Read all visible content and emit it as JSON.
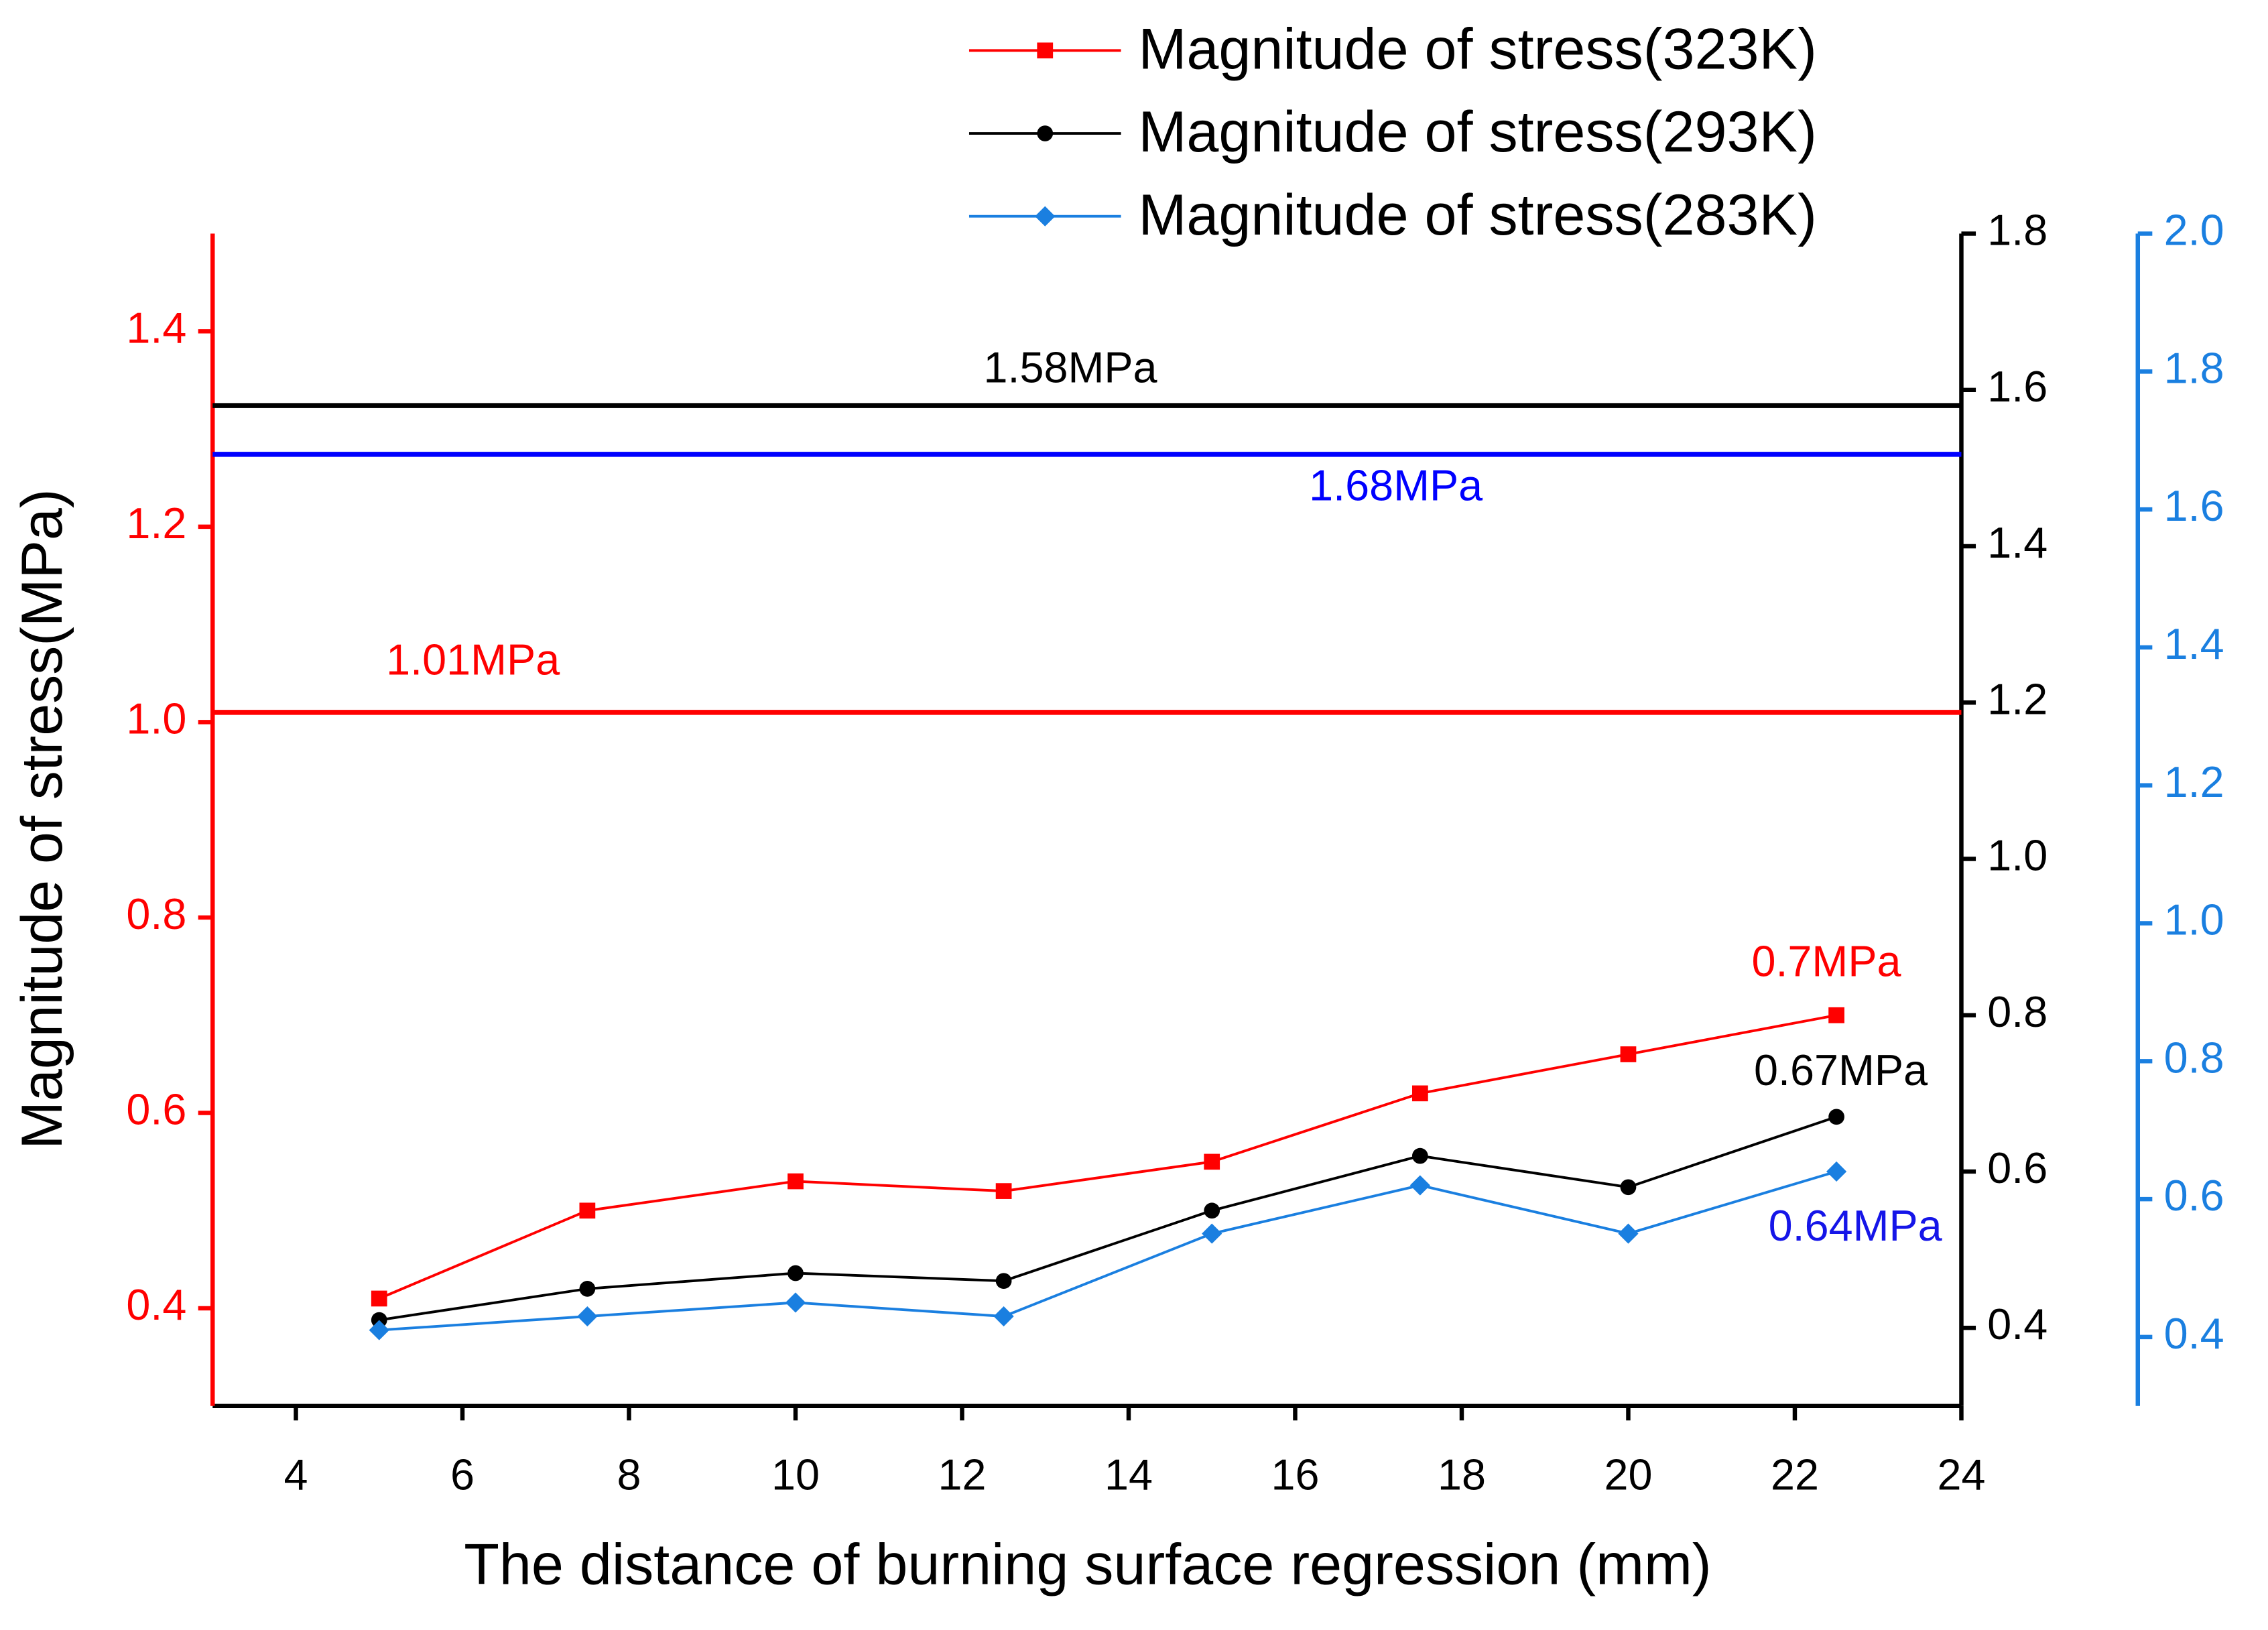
{
  "chart_data": {
    "type": "line",
    "xlabel": "The distance of burning surface regression (mm)",
    "ylabel": "Magnitude of stress(MPa)",
    "x": [
      5,
      7.5,
      10,
      12.5,
      15,
      17.5,
      20,
      22.5
    ],
    "xlim": [
      3,
      24
    ],
    "xticks": [
      4,
      6,
      8,
      10,
      12,
      14,
      16,
      18,
      20,
      22,
      24
    ],
    "ylim": [
      0.3,
      1.5
    ],
    "yticks": [
      0.4,
      0.6,
      0.8,
      {
        "value": 1.0,
        "label": "1.0"
      },
      1.2,
      1.4
    ],
    "ycolor": "#ff0000",
    "y2lim": [
      0.3,
      1.8
    ],
    "y2ticks": [
      0.4,
      0.6,
      0.8,
      {
        "value": 1.0,
        "label": "1.0"
      },
      1.2,
      1.4,
      1.6,
      1.8
    ],
    "y2color": "#000000",
    "y3lim": [
      0.3,
      2.0
    ],
    "y3ticks": [
      0.4,
      0.6,
      0.8,
      {
        "value": 1.0,
        "label": "1.0"
      },
      1.2,
      1.4,
      1.6,
      1.8,
      {
        "value": 2.0,
        "label": "2.0"
      }
    ],
    "y3color": "#1a7fe0",
    "legend": "top",
    "series": [
      {
        "name": "Magnitude of stress(323K)",
        "color": "#ff0000",
        "marker": "square",
        "axis": "y",
        "values": [
          0.41,
          0.5,
          0.53,
          0.52,
          0.55,
          0.62,
          0.66,
          0.7
        ],
        "annotation": "0.7MPa",
        "annotation_color": "#ff0000"
      },
      {
        "name": "Magnitude of stress(293K)",
        "color": "#000000",
        "marker": "circle",
        "axis": "y2",
        "values": [
          0.41,
          0.45,
          0.47,
          0.46,
          0.55,
          0.62,
          0.58,
          0.67
        ],
        "annotation": "0.67MPa",
        "annotation_color": "#000000"
      },
      {
        "name": "Magnitude of stress(283K)",
        "color": "#1a7fe0",
        "marker": "diamond",
        "axis": "y3",
        "values": [
          0.41,
          0.43,
          0.45,
          0.43,
          0.55,
          0.62,
          0.55,
          0.64
        ],
        "annotation": "0.64MPa",
        "annotation_color": "#1515e8"
      }
    ],
    "reference_lines": [
      {
        "value": 1.01,
        "label": "1.01MPa",
        "color": "#ff0000",
        "axis": "y"
      },
      {
        "value": 1.58,
        "label": "1.58MPa",
        "color": "#000000",
        "axis": "y2"
      },
      {
        "value": 1.68,
        "label": "1.68MPa",
        "color": "#0000ff",
        "axis": "y3"
      }
    ]
  }
}
